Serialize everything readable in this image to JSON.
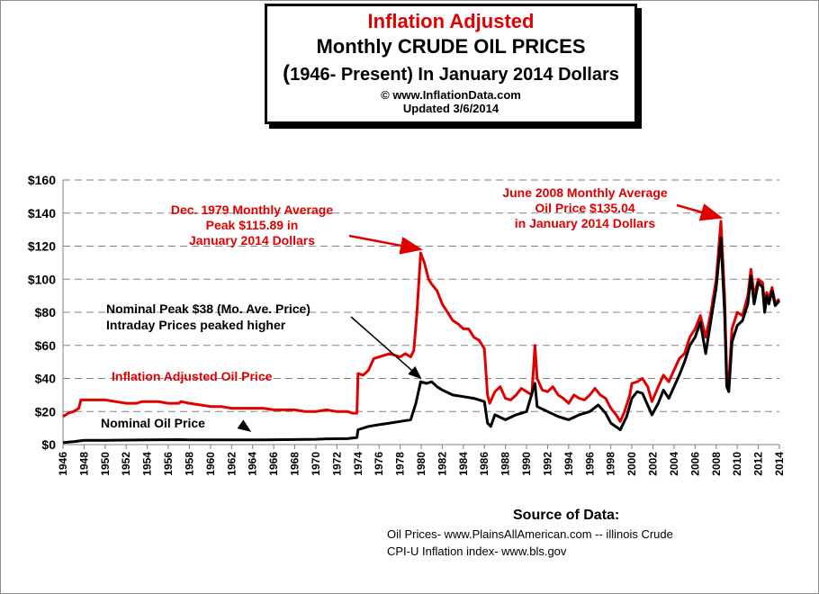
{
  "title": {
    "line1": "Inflation Adjusted",
    "line2": "Monthly CRUDE OIL PRICES",
    "line3_paren": "(",
    "line3_rest": "1946- Present) In January 2014 Dollars",
    "copyright": "© www.InflationData.com",
    "updated": "Updated 3/6/2014"
  },
  "source": {
    "heading": "Source of Data:",
    "line1": "Oil Prices- www.PlainsAllAmerican.com -- illinois Crude",
    "line2": "CPI-U Inflation index-    www.bls.gov"
  },
  "colors": {
    "adjusted": "#e00000",
    "nominal": "#000000",
    "grid": "#808080"
  },
  "chart_data": {
    "type": "line",
    "title": "Inflation Adjusted Monthly CRUDE OIL PRICES (1946- Present) In January 2014 Dollars",
    "xlabel": "",
    "ylabel": "",
    "xlim": [
      1946,
      2014
    ],
    "ylim": [
      0,
      160
    ],
    "grid": "horizontal dashed",
    "y_ticks": [
      "$0",
      "$20",
      "$40",
      "$60",
      "$80",
      "$100",
      "$120",
      "$140",
      "$160"
    ],
    "x_ticks": [
      "1946",
      "1948",
      "1950",
      "1952",
      "1954",
      "1956",
      "1958",
      "1960",
      "1962",
      "1964",
      "1966",
      "1968",
      "1970",
      "1972",
      "1974",
      "1976",
      "1978",
      "1980",
      "1982",
      "1984",
      "1986",
      "1988",
      "1990",
      "1992",
      "1994",
      "1996",
      "1998",
      "2000",
      "2002",
      "2004",
      "2006",
      "2008",
      "2010",
      "2012",
      "2014"
    ],
    "series": [
      {
        "name": "Inflation Adjusted Oil Price",
        "color": "#e00000",
        "points": [
          [
            1946.0,
            17
          ],
          [
            1946.5,
            19
          ],
          [
            1947.0,
            20
          ],
          [
            1947.5,
            22
          ],
          [
            1947.7,
            27
          ],
          [
            1948.0,
            27
          ],
          [
            1949.0,
            27
          ],
          [
            1950.0,
            27
          ],
          [
            1951.0,
            26
          ],
          [
            1952.0,
            25
          ],
          [
            1953.0,
            25
          ],
          [
            1953.5,
            26
          ],
          [
            1954.0,
            26
          ],
          [
            1955.0,
            26
          ],
          [
            1956.0,
            25
          ],
          [
            1957.0,
            25
          ],
          [
            1957.2,
            26
          ],
          [
            1958.0,
            25
          ],
          [
            1959.0,
            24
          ],
          [
            1960.0,
            23
          ],
          [
            1961.0,
            23
          ],
          [
            1962.0,
            22
          ],
          [
            1963.0,
            22
          ],
          [
            1964.0,
            22
          ],
          [
            1965.0,
            22
          ],
          [
            1966.0,
            21
          ],
          [
            1967.0,
            21
          ],
          [
            1968.0,
            21
          ],
          [
            1969.0,
            20
          ],
          [
            1970.0,
            20
          ],
          [
            1971.0,
            21
          ],
          [
            1972.0,
            20
          ],
          [
            1973.0,
            20
          ],
          [
            1973.5,
            19
          ],
          [
            1973.9,
            19
          ],
          [
            1974.0,
            43
          ],
          [
            1974.5,
            42
          ],
          [
            1975.0,
            45
          ],
          [
            1975.5,
            52
          ],
          [
            1976.0,
            53
          ],
          [
            1977.0,
            55
          ],
          [
            1978.0,
            53
          ],
          [
            1978.5,
            55
          ],
          [
            1979.0,
            53
          ],
          [
            1979.3,
            57
          ],
          [
            1979.6,
            80
          ],
          [
            1979.95,
            115.89
          ],
          [
            1980.3,
            110
          ],
          [
            1980.7,
            100
          ],
          [
            1981.0,
            97
          ],
          [
            1981.5,
            93
          ],
          [
            1982.0,
            85
          ],
          [
            1982.5,
            80
          ],
          [
            1983.0,
            75
          ],
          [
            1983.5,
            73
          ],
          [
            1984.0,
            70
          ],
          [
            1984.5,
            70
          ],
          [
            1985.0,
            65
          ],
          [
            1985.5,
            63
          ],
          [
            1986.0,
            58
          ],
          [
            1986.3,
            30
          ],
          [
            1986.5,
            25
          ],
          [
            1987.0,
            32
          ],
          [
            1987.5,
            35
          ],
          [
            1988.0,
            28
          ],
          [
            1988.5,
            27
          ],
          [
            1989.0,
            30
          ],
          [
            1989.5,
            34
          ],
          [
            1990.0,
            32
          ],
          [
            1990.5,
            30
          ],
          [
            1990.8,
            60
          ],
          [
            1991.0,
            40
          ],
          [
            1991.5,
            33
          ],
          [
            1992.0,
            32
          ],
          [
            1992.5,
            35
          ],
          [
            1993.0,
            30
          ],
          [
            1993.5,
            28
          ],
          [
            1994.0,
            25
          ],
          [
            1994.5,
            30
          ],
          [
            1995.0,
            28
          ],
          [
            1995.5,
            27
          ],
          [
            1996.0,
            30
          ],
          [
            1996.5,
            34
          ],
          [
            1997.0,
            30
          ],
          [
            1997.5,
            28
          ],
          [
            1998.0,
            22
          ],
          [
            1998.5,
            18
          ],
          [
            1998.9,
            14
          ],
          [
            1999.3,
            20
          ],
          [
            1999.8,
            30
          ],
          [
            2000.0,
            37
          ],
          [
            2000.5,
            38
          ],
          [
            2001.0,
            40
          ],
          [
            2001.5,
            35
          ],
          [
            2001.9,
            26
          ],
          [
            2002.5,
            35
          ],
          [
            2003.0,
            42
          ],
          [
            2003.5,
            38
          ],
          [
            2004.0,
            45
          ],
          [
            2004.5,
            52
          ],
          [
            2005.0,
            55
          ],
          [
            2005.5,
            65
          ],
          [
            2006.0,
            70
          ],
          [
            2006.5,
            78
          ],
          [
            2007.0,
            65
          ],
          [
            2007.5,
            80
          ],
          [
            2008.0,
            100
          ],
          [
            2008.45,
            135.04
          ],
          [
            2008.8,
            90
          ],
          [
            2009.0,
            42
          ],
          [
            2009.2,
            38
          ],
          [
            2009.5,
            70
          ],
          [
            2010.0,
            80
          ],
          [
            2010.5,
            78
          ],
          [
            2011.0,
            90
          ],
          [
            2011.3,
            106
          ],
          [
            2011.6,
            90
          ],
          [
            2012.0,
            100
          ],
          [
            2012.4,
            98
          ],
          [
            2012.6,
            85
          ],
          [
            2012.8,
            92
          ],
          [
            2013.0,
            88
          ],
          [
            2013.3,
            95
          ],
          [
            2013.6,
            86
          ],
          [
            2014.0,
            88
          ]
        ]
      },
      {
        "name": "Nominal Oil Price",
        "color": "#000000",
        "points": [
          [
            1946.0,
            1.2
          ],
          [
            1947.0,
            1.8
          ],
          [
            1948.0,
            2.6
          ],
          [
            1950.0,
            2.6
          ],
          [
            1953.0,
            2.8
          ],
          [
            1957.0,
            3.0
          ],
          [
            1958.0,
            2.9
          ],
          [
            1960.0,
            2.9
          ],
          [
            1965.0,
            2.9
          ],
          [
            1970.0,
            3.2
          ],
          [
            1971.0,
            3.5
          ],
          [
            1973.0,
            3.6
          ],
          [
            1973.9,
            4.3
          ],
          [
            1974.0,
            9
          ],
          [
            1975.0,
            11
          ],
          [
            1976.0,
            12
          ],
          [
            1977.0,
            13
          ],
          [
            1978.0,
            14
          ],
          [
            1979.0,
            15
          ],
          [
            1979.5,
            25
          ],
          [
            1979.95,
            38
          ],
          [
            1980.5,
            37
          ],
          [
            1981.0,
            38
          ],
          [
            1981.5,
            35
          ],
          [
            1982.0,
            33
          ],
          [
            1983.0,
            30
          ],
          [
            1984.0,
            29
          ],
          [
            1985.0,
            28
          ],
          [
            1986.0,
            26
          ],
          [
            1986.3,
            13
          ],
          [
            1986.6,
            11
          ],
          [
            1987.0,
            18
          ],
          [
            1988.0,
            15
          ],
          [
            1989.0,
            18
          ],
          [
            1990.0,
            20
          ],
          [
            1990.8,
            37
          ],
          [
            1991.0,
            23
          ],
          [
            1992.0,
            20
          ],
          [
            1993.0,
            17
          ],
          [
            1994.0,
            15
          ],
          [
            1995.0,
            18
          ],
          [
            1996.0,
            20
          ],
          [
            1996.8,
            24
          ],
          [
            1997.5,
            19
          ],
          [
            1998.0,
            13
          ],
          [
            1998.9,
            9
          ],
          [
            1999.5,
            17
          ],
          [
            2000.0,
            28
          ],
          [
            2000.5,
            32
          ],
          [
            2001.0,
            31
          ],
          [
            2001.9,
            18
          ],
          [
            2002.5,
            25
          ],
          [
            2003.0,
            33
          ],
          [
            2003.5,
            28
          ],
          [
            2004.0,
            35
          ],
          [
            2004.5,
            42
          ],
          [
            2005.0,
            50
          ],
          [
            2005.5,
            60
          ],
          [
            2006.0,
            65
          ],
          [
            2006.5,
            74
          ],
          [
            2007.0,
            55
          ],
          [
            2007.5,
            75
          ],
          [
            2008.0,
            95
          ],
          [
            2008.45,
            125
          ],
          [
            2008.8,
            80
          ],
          [
            2009.0,
            35
          ],
          [
            2009.2,
            32
          ],
          [
            2009.5,
            62
          ],
          [
            2010.0,
            72
          ],
          [
            2010.5,
            75
          ],
          [
            2011.0,
            85
          ],
          [
            2011.3,
            102
          ],
          [
            2011.6,
            85
          ],
          [
            2012.0,
            98
          ],
          [
            2012.4,
            95
          ],
          [
            2012.6,
            80
          ],
          [
            2012.8,
            90
          ],
          [
            2013.0,
            85
          ],
          [
            2013.3,
            93
          ],
          [
            2013.6,
            84
          ],
          [
            2014.0,
            87
          ]
        ]
      }
    ],
    "annotations": [
      {
        "lines": [
          "Dec. 1979 Monthly Average",
          "Peak $115.89 in",
          "January 2014 Dollars"
        ],
        "color": "#e00000",
        "target": [
          1979.95,
          115.89
        ]
      },
      {
        "lines": [
          "June 2008 Monthly Average",
          "Oil  Price $135.04",
          "in January 2014 Dollars"
        ],
        "color": "#e00000",
        "target": [
          2008.45,
          135.04
        ]
      },
      {
        "lines": [
          "Nominal Peak $38 (Mo. Ave. Price)",
          "Intraday Prices peaked higher"
        ],
        "color": "#000000",
        "target": [
          1979.95,
          38
        ]
      },
      {
        "lines": [
          "Inflation Adjusted Oil Price"
        ],
        "color": "#e00000"
      },
      {
        "lines": [
          "Nominal Oil Price"
        ],
        "color": "#000000",
        "target": [
          1973.0,
          4
        ]
      }
    ]
  }
}
